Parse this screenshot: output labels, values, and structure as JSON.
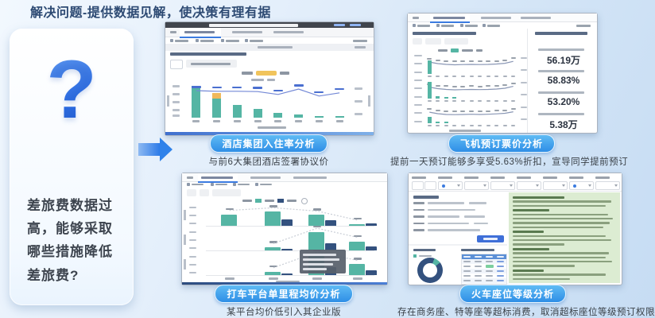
{
  "title": "解决问题-提供数据见解，使决策有理有据",
  "question_card": {
    "mark": "?",
    "text": "差旅费数据过高，能够采取哪些措施降低差旅费?"
  },
  "panels": {
    "hotel": {
      "badge": "酒店集团入住率分析",
      "caption": "与前6大集团酒店签署协议价"
    },
    "flight": {
      "badge": "飞机预订票价分析",
      "caption": "提前一天预订能够多享受5.63%折扣，宣导同学提前预订",
      "kpis": [
        {
          "value": "56.19万"
        },
        {
          "value": "58.83%"
        },
        {
          "value": "53.20%"
        },
        {
          "value": "5.38万"
        }
      ]
    },
    "taxi": {
      "badge": "打车平台单里程均价分析",
      "caption": "某平台均价低引入其企业版"
    },
    "train": {
      "badge": "火车座位等级分析",
      "caption": "存在商务座、特等座等超标消费，取消超标座位等级预订权限"
    }
  },
  "colors": {
    "teal": "#55b5a4",
    "orange": "#f0b85c",
    "navy": "#33517e",
    "line_blue": "#7388d6",
    "label_blue": "#4a6fd0",
    "badge_blue": "#2e8ee6",
    "green_panel": "#dcecd2",
    "table_header": "#5b8fd6",
    "button_blue": "#3f6fd8",
    "accent": "#3b7be0"
  },
  "chart_data": [
    {
      "type": "bar",
      "name": "hotel-occupancy-bars-with-line",
      "note": "values estimated as percent of plot height; labels illegible in source",
      "bars": [
        100,
        78,
        40,
        28,
        16,
        9,
        6,
        4
      ],
      "orange_overlay": {
        "bar_index": 1,
        "top_pct": 18
      },
      "line": [
        15,
        17,
        17,
        18,
        27,
        10,
        32,
        22
      ]
    },
    {
      "type": "line",
      "name": "flight-price-trends",
      "note": "three stacked mini line charts with small teal bars; percent coords estimated",
      "rows": [
        {
          "line": [
            38,
            46,
            50,
            52,
            51,
            50,
            51,
            50,
            48,
            44,
            34
          ],
          "bars": [
            {
              "i": 0,
              "h": 72
            }
          ]
        },
        {
          "line": [
            40,
            48,
            52,
            54,
            53,
            52,
            53,
            52,
            50,
            46,
            36
          ],
          "bars": [
            {
              "i": 0,
              "h": 86
            },
            {
              "i": 1,
              "h": 14
            },
            {
              "i": 2,
              "h": 10
            },
            {
              "i": 3,
              "h": 8
            }
          ]
        },
        {
          "line": [
            42,
            50,
            54,
            55,
            54,
            53,
            54,
            53,
            51,
            48,
            40
          ],
          "bars": [
            {
              "i": 0,
              "h": 34
            },
            {
              "i": 1,
              "h": 10
            },
            {
              "i": 2,
              "h": 8
            }
          ]
        }
      ]
    },
    {
      "type": "bar",
      "name": "taxi-grouped-bars",
      "note": "teal vs navy grouped bars, three rows; percent heights estimated",
      "rows": [
        {
          "groups": [
            {
              "t": 55,
              "n": 0
            },
            {
              "t": 68,
              "n": 30
            },
            {
              "t": 52,
              "n": 26
            },
            {
              "t": 8,
              "n": 12
            }
          ]
        },
        {
          "groups": [
            {
              "t": 0,
              "n": 0
            },
            {
              "t": 14,
              "n": 8
            },
            {
              "t": 88,
              "n": 34
            },
            {
              "t": 44,
              "n": 18
            }
          ]
        },
        {
          "groups": [
            {
              "t": 0,
              "n": 0
            },
            {
              "t": 16,
              "n": 9
            },
            {
              "t": 92,
              "n": 40
            },
            {
              "t": 52,
              "n": 22
            }
          ]
        }
      ]
    },
    {
      "type": "pie",
      "name": "train-seat-donut",
      "segments": [
        {
          "name": "highlight",
          "pct": 9,
          "color": "#55b5a4"
        },
        {
          "name": "rest",
          "pct": 91,
          "color": "#33517e"
        }
      ]
    }
  ]
}
